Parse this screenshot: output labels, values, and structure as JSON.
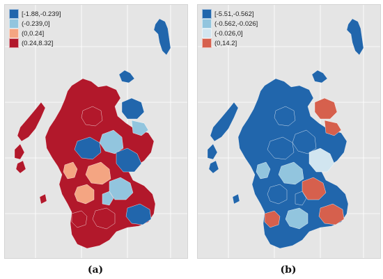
{
  "panels": [
    {
      "id": "a",
      "caption": "(a)",
      "legend": [
        {
          "label": "[-1.88,-0.239]",
          "color": "#2166ac"
        },
        {
          "label": "(-0.239,0]",
          "color": "#92c5de"
        },
        {
          "label": "(0,0.24]",
          "color": "#f4a582"
        },
        {
          "label": "(0.24,8.32]",
          "color": "#b2182b"
        }
      ],
      "dominant_class": 3
    },
    {
      "id": "b",
      "caption": "(b)",
      "legend": [
        {
          "label": "[-5.51,-0.562]",
          "color": "#2166ac"
        },
        {
          "label": "(-0.562,-0.026]",
          "color": "#92c5de"
        },
        {
          "label": "(-0.026,0]",
          "color": "#d1e5f0"
        },
        {
          "label": "(0,14.2]",
          "color": "#d6604d"
        }
      ],
      "dominant_class": 0
    }
  ],
  "colors": {
    "panel_background": "#e5e5e5",
    "gridlines": "#ffffff"
  }
}
